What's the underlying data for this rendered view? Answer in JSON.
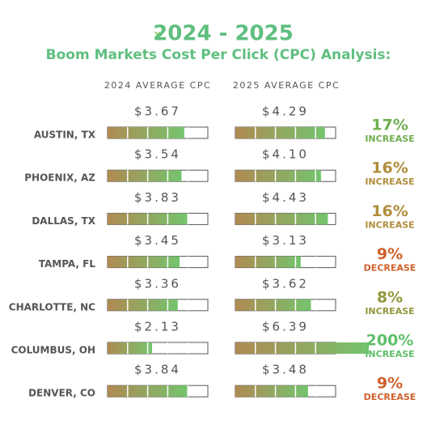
{
  "title": "2024 - 2025",
  "subtitle": "Boom Markets Cost Per Click (CPC) Analysis:",
  "columns": [
    "2024 AVERAGE CPC",
    "2025 AVERAGE CPC"
  ],
  "xlim": [
    0,
    4.8
  ],
  "rows": [
    {
      "market": "AUSTIN, TX",
      "values": [
        3.67,
        4.29
      ],
      "value_labels": [
        "$3.67",
        "$4.29"
      ],
      "change": 17,
      "change_label": "17%",
      "direction": "INCREASE",
      "color": "#6fae4f"
    },
    {
      "market": "PHOENIX, AZ",
      "values": [
        3.54,
        4.1
      ],
      "value_labels": [
        "$3.54",
        "$4.10"
      ],
      "change": 16,
      "change_label": "16%",
      "direction": "INCREASE",
      "color": "#b08d3c"
    },
    {
      "market": "DALLAS, TX",
      "values": [
        3.83,
        4.43
      ],
      "value_labels": [
        "$3.83",
        "$4.43"
      ],
      "change": 16,
      "change_label": "16%",
      "direction": "INCREASE",
      "color": "#b08d3c"
    },
    {
      "market": "TAMPA, FL",
      "values": [
        3.45,
        3.13
      ],
      "value_labels": [
        "$3.45",
        "$3.13"
      ],
      "change": -9,
      "change_label": "9%",
      "direction": "DECREASE",
      "color": "#d0602a"
    },
    {
      "market": "CHARLOTTE, NC",
      "values": [
        3.36,
        3.62
      ],
      "value_labels": [
        "$3.36",
        "$3.62"
      ],
      "change": 8,
      "change_label": "8%",
      "direction": "INCREASE",
      "color": "#93983c"
    },
    {
      "market": "COLUMBUS, OH",
      "values": [
        2.13,
        6.39
      ],
      "value_labels": [
        "$2.13",
        "$6.39"
      ],
      "change": 200,
      "change_label": "200%",
      "direction": "INCREASE",
      "color": "#5fbf6a"
    },
    {
      "market": "DENVER, CO",
      "values": [
        3.84,
        3.48
      ],
      "value_labels": [
        "$3.84",
        "$3.48"
      ],
      "change": -9,
      "change_label": "9%",
      "direction": "DECREASE",
      "color": "#d0602a"
    }
  ]
}
